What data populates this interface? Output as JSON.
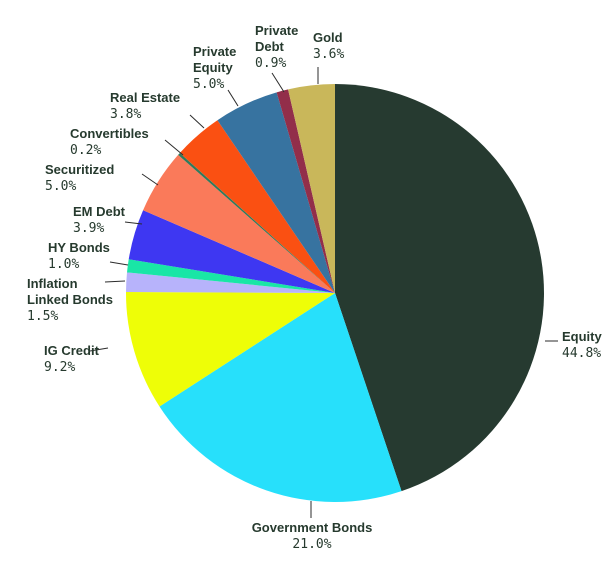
{
  "chart_data": {
    "type": "pie",
    "title": "",
    "slices": [
      {
        "label": [
          "Equity"
        ],
        "value_label": "44.8%",
        "value": 44.8,
        "color": "#263a30"
      },
      {
        "label": [
          "Government Bonds"
        ],
        "value_label": "21.0%",
        "value": 21.0,
        "color": "#27e0fb"
      },
      {
        "label": [
          "IG Credit"
        ],
        "value_label": "9.2%",
        "value": 9.2,
        "color": "#eefe07"
      },
      {
        "label": [
          "Inflation",
          "Linked Bonds"
        ],
        "value_label": "1.5%",
        "value": 1.5,
        "color": "#b7b3fb"
      },
      {
        "label": [
          "HY Bonds"
        ],
        "value_label": "1.0%",
        "value": 1.0,
        "color": "#19e6a6"
      },
      {
        "label": [
          "EM Debt"
        ],
        "value_label": "3.9%",
        "value": 3.9,
        "color": "#3e37f2"
      },
      {
        "label": [
          "Securitized"
        ],
        "value_label": "5.0%",
        "value": 5.0,
        "color": "#fa7a5a"
      },
      {
        "label": [
          "Convertibles"
        ],
        "value_label": "0.2%",
        "value": 0.2,
        "color": "#2f7a5c"
      },
      {
        "label": [
          "Real Estate"
        ],
        "value_label": "3.8%",
        "value": 3.8,
        "color": "#fa5012"
      },
      {
        "label": [
          "Private",
          "Equity"
        ],
        "value_label": "5.0%",
        "value": 5.0,
        "color": "#3773a0"
      },
      {
        "label": [
          "Private",
          "Debt"
        ],
        "value_label": "0.9%",
        "value": 0.9,
        "color": "#922e4a"
      },
      {
        "label": [
          "Gold"
        ],
        "value_label": "3.6%",
        "value": 3.6,
        "color": "#c9b75a"
      }
    ]
  }
}
